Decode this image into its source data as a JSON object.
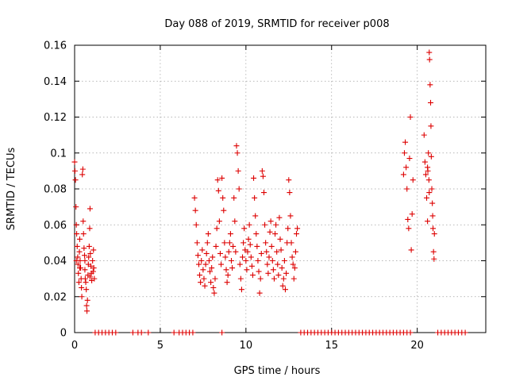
{
  "chart_data": {
    "type": "scatter",
    "title": "Day 088 of 2019, SRMTID for receiver p008",
    "xlabel": "GPS time / hours",
    "ylabel": "SRMTID / TECUs",
    "xlim": [
      0,
      24
    ],
    "ylim": [
      0,
      0.16
    ],
    "xticks": [
      0,
      5,
      10,
      15,
      20
    ],
    "xtick_labels": [
      "0",
      "5",
      "10",
      "15",
      "20"
    ],
    "yticks": [
      0,
      0.02,
      0.04,
      0.06,
      0.08,
      0.1,
      0.12,
      0.14,
      0.16
    ],
    "ytick_labels": [
      "0",
      "0.02",
      "0.04",
      "0.06",
      "0.08",
      "0.1",
      "0.12",
      "0.14",
      "0.16"
    ],
    "grid": true,
    "marker": "+",
    "color": "#dd0000",
    "series": [
      {
        "name": "SRMTID",
        "points": [
          [
            0.0,
            0.095
          ],
          [
            0.02,
            0.09
          ],
          [
            0.05,
            0.085
          ],
          [
            0.08,
            0.07
          ],
          [
            0.1,
            0.06
          ],
          [
            0.12,
            0.055
          ],
          [
            0.15,
            0.048
          ],
          [
            0.18,
            0.042
          ],
          [
            0.2,
            0.038
          ],
          [
            0.22,
            0.033
          ],
          [
            0.25,
            0.028
          ],
          [
            0.28,
            0.045
          ],
          [
            0.3,
            0.052
          ],
          [
            0.32,
            0.04
          ],
          [
            0.35,
            0.036
          ],
          [
            0.38,
            0.03
          ],
          [
            0.4,
            0.025
          ],
          [
            0.42,
            0.02
          ],
          [
            0.45,
            0.088
          ],
          [
            0.48,
            0.091
          ],
          [
            0.5,
            0.062
          ],
          [
            0.52,
            0.055
          ],
          [
            0.55,
            0.047
          ],
          [
            0.58,
            0.043
          ],
          [
            0.6,
            0.035
          ],
          [
            0.62,
            0.03
          ],
          [
            0.65,
            0.028
          ],
          [
            0.68,
            0.024
          ],
          [
            0.7,
            0.015
          ],
          [
            0.72,
            0.012
          ],
          [
            0.75,
            0.018
          ],
          [
            0.78,
            0.032
          ],
          [
            0.8,
            0.038
          ],
          [
            0.82,
            0.042
          ],
          [
            0.85,
            0.048
          ],
          [
            0.88,
            0.058
          ],
          [
            0.9,
            0.069
          ],
          [
            0.92,
            0.044
          ],
          [
            0.95,
            0.037
          ],
          [
            0.98,
            0.033
          ],
          [
            1.0,
            0.029
          ],
          [
            1.05,
            0.04
          ],
          [
            1.1,
            0.046
          ],
          [
            1.12,
            0.036
          ],
          [
            1.15,
            0.03
          ],
          [
            0.1,
            0.04
          ],
          [
            0.3,
            0.036
          ],
          [
            0.6,
            0.04
          ],
          [
            0.9,
            0.031
          ],
          [
            1.08,
            0.034
          ],
          [
            1.2,
            0.0
          ],
          [
            1.4,
            0.0
          ],
          [
            1.6,
            0.0
          ],
          [
            1.8,
            0.0
          ],
          [
            2.0,
            0.0
          ],
          [
            2.2,
            0.0
          ],
          [
            2.4,
            0.0
          ],
          [
            3.4,
            0.0
          ],
          [
            3.7,
            0.0
          ],
          [
            3.9,
            0.0
          ],
          [
            4.3,
            0.0
          ],
          [
            5.8,
            0.0
          ],
          [
            6.1,
            0.0
          ],
          [
            6.3,
            0.0
          ],
          [
            6.5,
            0.0
          ],
          [
            6.7,
            0.0
          ],
          [
            6.9,
            0.0
          ],
          [
            8.6,
            0.0
          ],
          [
            7.0,
            0.075
          ],
          [
            7.05,
            0.068
          ],
          [
            7.1,
            0.06
          ],
          [
            7.15,
            0.05
          ],
          [
            7.2,
            0.043
          ],
          [
            7.25,
            0.038
          ],
          [
            7.3,
            0.032
          ],
          [
            7.35,
            0.028
          ],
          [
            7.4,
            0.04
          ],
          [
            7.45,
            0.046
          ],
          [
            7.5,
            0.035
          ],
          [
            7.55,
            0.03
          ],
          [
            7.6,
            0.026
          ],
          [
            7.65,
            0.038
          ],
          [
            7.7,
            0.044
          ],
          [
            7.75,
            0.05
          ],
          [
            7.8,
            0.055
          ],
          [
            7.85,
            0.04
          ],
          [
            7.9,
            0.034
          ],
          [
            7.95,
            0.028
          ],
          [
            8.0,
            0.036
          ],
          [
            8.05,
            0.042
          ],
          [
            8.1,
            0.025
          ],
          [
            8.15,
            0.022
          ],
          [
            8.2,
            0.03
          ],
          [
            8.25,
            0.048
          ],
          [
            8.3,
            0.058
          ],
          [
            8.35,
            0.085
          ],
          [
            8.4,
            0.079
          ],
          [
            8.45,
            0.062
          ],
          [
            8.5,
            0.044
          ],
          [
            8.55,
            0.038
          ],
          [
            8.6,
            0.086
          ],
          [
            8.65,
            0.075
          ],
          [
            8.7,
            0.068
          ],
          [
            8.75,
            0.05
          ],
          [
            8.8,
            0.042
          ],
          [
            8.85,
            0.035
          ],
          [
            8.9,
            0.028
          ],
          [
            8.95,
            0.032
          ],
          [
            9.0,
            0.045
          ],
          [
            9.05,
            0.05
          ],
          [
            9.1,
            0.055
          ],
          [
            9.15,
            0.04
          ],
          [
            9.2,
            0.036
          ],
          [
            9.25,
            0.048
          ],
          [
            9.3,
            0.075
          ],
          [
            9.35,
            0.062
          ],
          [
            9.4,
            0.045
          ],
          [
            9.45,
            0.104
          ],
          [
            9.5,
            0.1
          ],
          [
            9.55,
            0.09
          ],
          [
            9.6,
            0.08
          ],
          [
            9.65,
            0.038
          ],
          [
            9.7,
            0.03
          ],
          [
            9.75,
            0.024
          ],
          [
            9.8,
            0.042
          ],
          [
            9.85,
            0.05
          ],
          [
            9.9,
            0.058
          ],
          [
            9.95,
            0.046
          ],
          [
            10.0,
            0.04
          ],
          [
            10.05,
            0.035
          ],
          [
            10.1,
            0.045
          ],
          [
            10.15,
            0.052
          ],
          [
            10.2,
            0.06
          ],
          [
            10.25,
            0.049
          ],
          [
            10.3,
            0.042
          ],
          [
            10.35,
            0.037
          ],
          [
            10.4,
            0.032
          ],
          [
            10.45,
            0.086
          ],
          [
            10.5,
            0.075
          ],
          [
            10.55,
            0.065
          ],
          [
            10.6,
            0.055
          ],
          [
            10.65,
            0.048
          ],
          [
            10.7,
            0.04
          ],
          [
            10.75,
            0.034
          ],
          [
            10.8,
            0.022
          ],
          [
            10.85,
            0.03
          ],
          [
            10.9,
            0.044
          ],
          [
            10.95,
            0.09
          ],
          [
            11.0,
            0.087
          ],
          [
            11.05,
            0.078
          ],
          [
            11.1,
            0.06
          ],
          [
            11.15,
            0.05
          ],
          [
            11.2,
            0.045
          ],
          [
            11.25,
            0.038
          ],
          [
            11.3,
            0.033
          ],
          [
            11.35,
            0.042
          ],
          [
            11.4,
            0.056
          ],
          [
            11.45,
            0.062
          ],
          [
            11.5,
            0.048
          ],
          [
            11.55,
            0.04
          ],
          [
            11.6,
            0.035
          ],
          [
            11.65,
            0.03
          ],
          [
            11.7,
            0.055
          ],
          [
            11.75,
            0.06
          ],
          [
            11.8,
            0.045
          ],
          [
            11.85,
            0.038
          ],
          [
            11.9,
            0.032
          ],
          [
            11.95,
            0.064
          ],
          [
            12.0,
            0.052
          ],
          [
            12.05,
            0.046
          ],
          [
            12.1,
            0.036
          ],
          [
            12.15,
            0.026
          ],
          [
            12.2,
            0.03
          ],
          [
            12.25,
            0.04
          ],
          [
            12.3,
            0.024
          ],
          [
            12.35,
            0.033
          ],
          [
            12.4,
            0.05
          ],
          [
            12.45,
            0.058
          ],
          [
            12.5,
            0.085
          ],
          [
            12.55,
            0.078
          ],
          [
            12.6,
            0.065
          ],
          [
            12.65,
            0.05
          ],
          [
            12.7,
            0.042
          ],
          [
            12.75,
            0.038
          ],
          [
            12.8,
            0.03
          ],
          [
            12.85,
            0.036
          ],
          [
            12.9,
            0.045
          ],
          [
            12.95,
            0.055
          ],
          [
            13.0,
            0.058
          ],
          [
            13.2,
            0.0
          ],
          [
            13.4,
            0.0
          ],
          [
            13.6,
            0.0
          ],
          [
            13.8,
            0.0
          ],
          [
            14.0,
            0.0
          ],
          [
            14.2,
            0.0
          ],
          [
            14.4,
            0.0
          ],
          [
            14.6,
            0.0
          ],
          [
            14.8,
            0.0
          ],
          [
            15.0,
            0.0
          ],
          [
            15.2,
            0.0
          ],
          [
            15.4,
            0.0
          ],
          [
            15.6,
            0.0
          ],
          [
            15.8,
            0.0
          ],
          [
            16.0,
            0.0
          ],
          [
            16.2,
            0.0
          ],
          [
            16.4,
            0.0
          ],
          [
            16.6,
            0.0
          ],
          [
            16.8,
            0.0
          ],
          [
            17.0,
            0.0
          ],
          [
            17.2,
            0.0
          ],
          [
            17.4,
            0.0
          ],
          [
            17.6,
            0.0
          ],
          [
            17.8,
            0.0
          ],
          [
            18.0,
            0.0
          ],
          [
            18.2,
            0.0
          ],
          [
            18.4,
            0.0
          ],
          [
            18.6,
            0.0
          ],
          [
            18.8,
            0.0
          ],
          [
            19.0,
            0.0
          ],
          [
            19.2,
            0.0
          ],
          [
            19.4,
            0.0
          ],
          [
            19.6,
            0.0
          ],
          [
            19.2,
            0.088
          ],
          [
            19.25,
            0.1
          ],
          [
            19.3,
            0.106
          ],
          [
            19.35,
            0.092
          ],
          [
            19.4,
            0.08
          ],
          [
            19.45,
            0.063
          ],
          [
            19.5,
            0.058
          ],
          [
            19.55,
            0.097
          ],
          [
            19.6,
            0.12
          ],
          [
            19.65,
            0.046
          ],
          [
            19.7,
            0.066
          ],
          [
            19.75,
            0.085
          ],
          [
            20.4,
            0.11
          ],
          [
            20.45,
            0.095
          ],
          [
            20.5,
            0.088
          ],
          [
            20.55,
            0.075
          ],
          [
            20.6,
            0.062
          ],
          [
            20.65,
            0.1
          ],
          [
            20.7,
            0.156
          ],
          [
            20.72,
            0.152
          ],
          [
            20.75,
            0.138
          ],
          [
            20.78,
            0.128
          ],
          [
            20.8,
            0.115
          ],
          [
            20.82,
            0.098
          ],
          [
            20.85,
            0.08
          ],
          [
            20.88,
            0.072
          ],
          [
            20.9,
            0.065
          ],
          [
            20.92,
            0.058
          ],
          [
            20.95,
            0.045
          ],
          [
            20.98,
            0.041
          ],
          [
            21.0,
            0.055
          ],
          [
            20.6,
            0.092
          ],
          [
            20.62,
            0.09
          ],
          [
            20.68,
            0.085
          ],
          [
            20.7,
            0.078
          ],
          [
            21.2,
            0.0
          ],
          [
            21.4,
            0.0
          ],
          [
            21.6,
            0.0
          ],
          [
            21.8,
            0.0
          ],
          [
            22.0,
            0.0
          ],
          [
            22.2,
            0.0
          ],
          [
            22.4,
            0.0
          ],
          [
            22.6,
            0.0
          ],
          [
            22.8,
            0.0
          ]
        ]
      }
    ]
  }
}
